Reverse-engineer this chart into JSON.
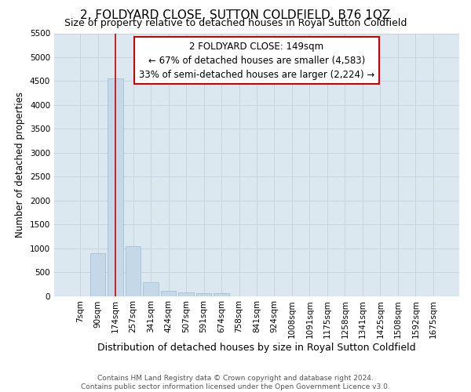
{
  "title": "2, FOLDYARD CLOSE, SUTTON COLDFIELD, B76 1QZ",
  "subtitle": "Size of property relative to detached houses in Royal Sutton Coldfield",
  "xlabel": "Distribution of detached houses by size in Royal Sutton Coldfield",
  "ylabel": "Number of detached properties",
  "footer_line1": "Contains HM Land Registry data © Crown copyright and database right 2024.",
  "footer_line2": "Contains public sector information licensed under the Open Government Licence v3.0.",
  "categories": [
    "7sqm",
    "90sqm",
    "174sqm",
    "257sqm",
    "341sqm",
    "424sqm",
    "507sqm",
    "591sqm",
    "674sqm",
    "758sqm",
    "841sqm",
    "924sqm",
    "1008sqm",
    "1091sqm",
    "1175sqm",
    "1258sqm",
    "1341sqm",
    "1425sqm",
    "1508sqm",
    "1592sqm",
    "1675sqm"
  ],
  "values": [
    0,
    890,
    4550,
    1050,
    280,
    100,
    75,
    60,
    60,
    0,
    0,
    0,
    0,
    0,
    0,
    0,
    0,
    0,
    0,
    0,
    0
  ],
  "bar_color": "#c5d8e8",
  "bar_edge_color": "#9bbcd0",
  "red_line_index": 2,
  "annotation_line1": "2 FOLDYARD CLOSE: 149sqm",
  "annotation_line2": "← 67% of detached houses are smaller (4,583)",
  "annotation_line3": "33% of semi-detached houses are larger (2,224) →",
  "annotation_box_color": "#ffffff",
  "annotation_border_color": "#cc0000",
  "property_line_color": "#cc0000",
  "ylim": [
    0,
    5500
  ],
  "yticks": [
    0,
    500,
    1000,
    1500,
    2000,
    2500,
    3000,
    3500,
    4000,
    4500,
    5000,
    5500
  ],
  "grid_color": "#c8d4e4",
  "background_color": "#dce8f0",
  "title_fontsize": 11,
  "subtitle_fontsize": 9,
  "ylabel_fontsize": 8.5,
  "xlabel_fontsize": 9,
  "tick_fontsize": 7.5,
  "annotation_fontsize": 8.5,
  "footer_fontsize": 6.5
}
